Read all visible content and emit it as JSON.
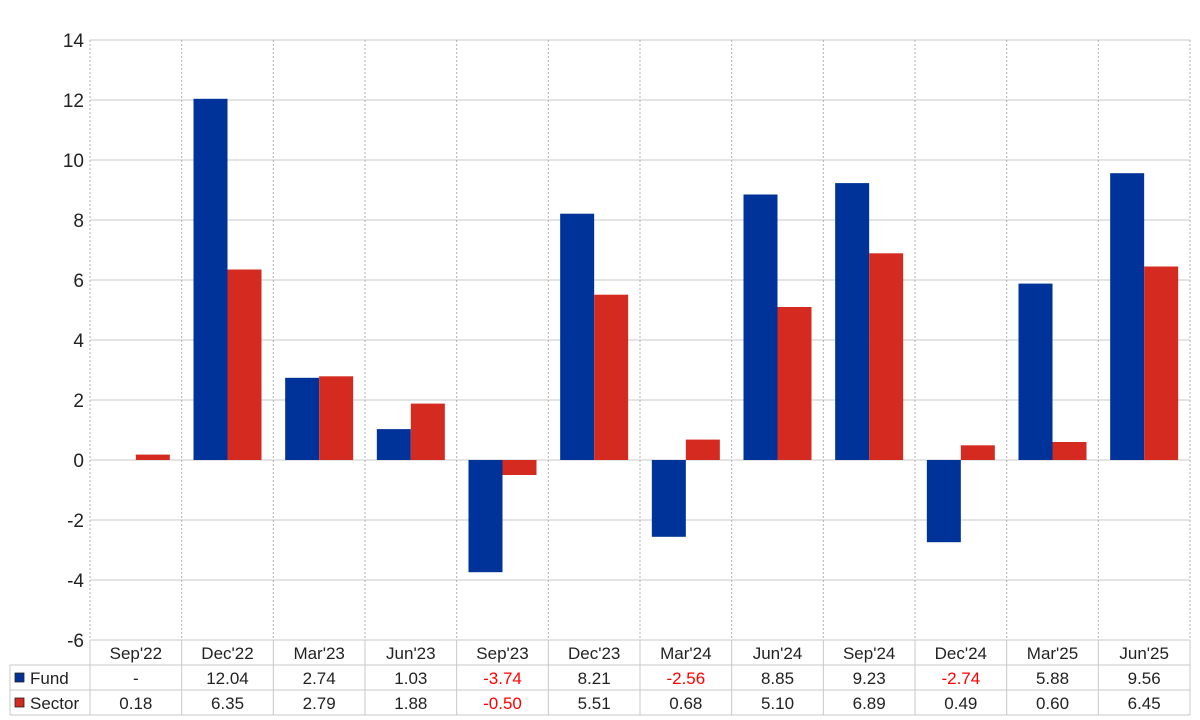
{
  "chart_data": {
    "type": "bar",
    "categories": [
      "Sep'22",
      "Dec'22",
      "Mar'23",
      "Jun'23",
      "Sep'23",
      "Dec'23",
      "Mar'24",
      "Jun'24",
      "Sep'24",
      "Dec'24",
      "Mar'25",
      "Jun'25"
    ],
    "series": [
      {
        "name": "Fund",
        "color": "#003399",
        "values": [
          null,
          12.04,
          2.74,
          1.03,
          -3.74,
          8.21,
          -2.56,
          8.85,
          9.23,
          -2.74,
          5.88,
          9.56
        ],
        "labels": [
          "-",
          "12.04",
          "2.74",
          "1.03",
          "-3.74",
          "8.21",
          "-2.56",
          "8.85",
          "9.23",
          "-2.74",
          "5.88",
          "9.56"
        ]
      },
      {
        "name": "Sector",
        "color": "#d42a20",
        "values": [
          0.18,
          6.35,
          2.79,
          1.88,
          -0.5,
          5.51,
          0.68,
          5.1,
          6.89,
          0.49,
          0.6,
          6.45
        ],
        "labels": [
          "0.18",
          "6.35",
          "2.79",
          "1.88",
          "-0.50",
          "5.51",
          "0.68",
          "5.10",
          "6.89",
          "0.49",
          "0.60",
          "6.45"
        ]
      }
    ],
    "ylim": [
      -6,
      14
    ],
    "yticks": [
      "14",
      "12",
      "10",
      "8",
      "6",
      "4",
      "2",
      "0",
      "-2",
      "-4",
      "-6"
    ],
    "grid": true,
    "legend": "table-below",
    "negative_label_color": "#ff0000"
  }
}
